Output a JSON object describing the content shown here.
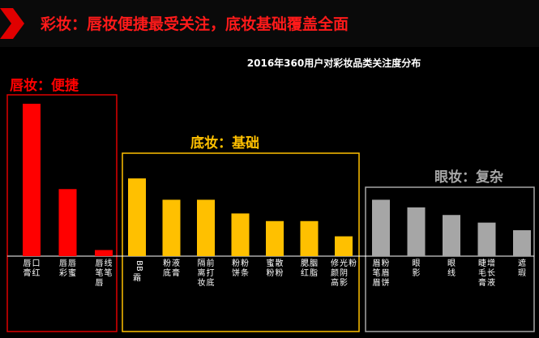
{
  "header": {
    "title": "彩妆：唇妆便捷最受关注，底妆基础覆盖全面"
  },
  "chart_data": {
    "type": "bar",
    "title": "2016年360用户对彩妆品类关注度分布",
    "groups": [
      {
        "name": "唇妆：便捷",
        "color": "#ff0000",
        "categories": [
          "唇膏口红",
          "唇彩唇蜜",
          "唇笔唇线笔"
        ],
        "values": [
          100,
          44,
          4
        ]
      },
      {
        "name": "底妆：基础",
        "color": "#ffc000",
        "categories": [
          "BB霜",
          "粉底液膏",
          "隔离妆前打底",
          "粉饼粉条",
          "蜜粉散粉",
          "腮红胭脂",
          "修颜高光阴影粉"
        ],
        "values": [
          51,
          37,
          37,
          28,
          23,
          23,
          13
        ]
      },
      {
        "name": "眼妆：复杂",
        "color": "#a6a6a6",
        "categories": [
          "眉笔眉粉眉饼",
          "眼影",
          "眼线",
          "睫毛膏增长液",
          "遮瑕"
        ],
        "values": [
          37,
          32,
          27,
          22,
          17
        ]
      }
    ]
  }
}
